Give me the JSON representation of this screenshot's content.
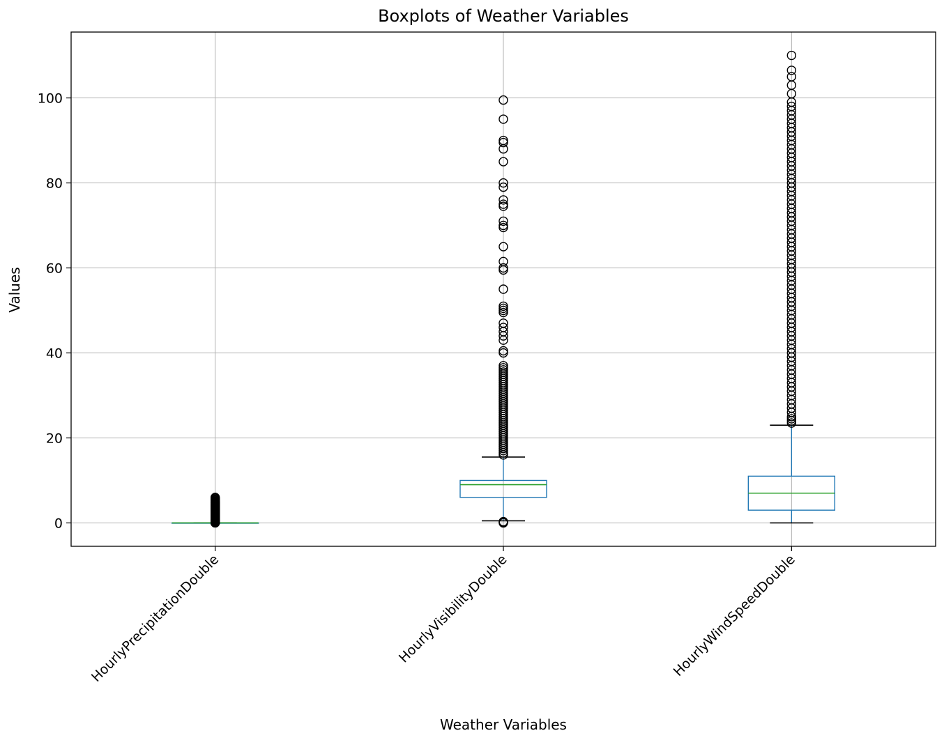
{
  "chart_data": {
    "type": "boxplot",
    "title": "Boxplots of Weather Variables",
    "xlabel": "Weather Variables",
    "ylabel": "Values",
    "ylim": [
      -5.5,
      115.5
    ],
    "yticks": [
      0,
      20,
      40,
      60,
      80,
      100
    ],
    "grid": true,
    "colors": {
      "box": "#1f77b4",
      "median": "#2ca02c",
      "whisker": "#1f77b4",
      "flier": "#000000",
      "grid": "#b0b0b0"
    },
    "categories": [
      "HourlyPrecipitationDouble",
      "HourlyVisibilityDouble",
      "HourlyWindSpeedDouble"
    ],
    "boxes": [
      {
        "name": "HourlyPrecipitationDouble",
        "whisker_low": 0,
        "q1": 0,
        "median": 0,
        "q3": 0,
        "whisker_high": 0,
        "fliers": [
          0.01,
          0.02,
          0.03,
          0.05,
          0.08,
          0.1,
          0.15,
          0.2,
          0.25,
          0.3,
          0.4,
          0.5,
          0.6,
          0.7,
          0.8,
          0.9,
          1.0,
          1.1,
          1.2,
          1.3,
          1.4,
          1.5,
          1.6,
          1.7,
          1.8,
          1.9,
          2.0,
          2.1,
          2.2,
          2.3,
          2.4,
          2.5,
          2.6,
          2.7,
          2.8,
          2.9,
          3.0,
          3.1,
          3.2,
          3.3,
          3.4,
          3.5,
          3.6,
          3.7,
          3.8,
          3.9,
          4.0,
          4.1,
          4.2,
          4.3,
          4.4,
          4.5,
          4.6,
          4.7,
          4.8,
          4.9,
          5.0,
          5.2,
          5.4,
          5.6,
          5.8,
          6.0
        ]
      },
      {
        "name": "HourlyVisibilityDouble",
        "whisker_low": 0.5,
        "q1": 6,
        "median": 9,
        "q3": 10,
        "whisker_high": 15.5,
        "fliers": [
          0,
          0.1,
          0.2,
          0.3,
          16,
          16.5,
          17,
          17.5,
          18,
          18.5,
          19,
          19.5,
          20,
          20.5,
          21,
          21.5,
          22,
          22.5,
          23,
          23.5,
          24,
          24.5,
          25,
          25.5,
          26,
          26.5,
          27,
          27.5,
          28,
          28.5,
          29,
          29.5,
          30,
          30.5,
          31,
          31.5,
          32,
          32.5,
          33,
          33.5,
          34,
          34.5,
          35,
          35.5,
          36,
          36.5,
          37,
          40,
          40.5,
          43,
          44,
          45,
          46,
          47,
          49.5,
          50,
          50.5,
          51,
          55,
          59.5,
          60,
          61.5,
          65,
          69.5,
          70,
          71,
          74.5,
          75,
          76,
          79,
          80,
          85,
          88,
          89.5,
          90,
          95,
          99.5
        ]
      },
      {
        "name": "HourlyWindSpeedDouble",
        "whisker_low": 0,
        "q1": 3,
        "median": 7,
        "q3": 11,
        "whisker_high": 23,
        "fliers": [
          23.5,
          24,
          24.5,
          25,
          26,
          27,
          28,
          29,
          30,
          31,
          32,
          33,
          34,
          35,
          36,
          37,
          38,
          39,
          40,
          41,
          42,
          43,
          44,
          45,
          46,
          47,
          48,
          49,
          50,
          51,
          52,
          53,
          54,
          55,
          56,
          57,
          58,
          59,
          60,
          61,
          62,
          63,
          64,
          65,
          66,
          67,
          68,
          69,
          70,
          71,
          72,
          73,
          74,
          75,
          76,
          77,
          78,
          79,
          80,
          81,
          82,
          83,
          84,
          85,
          86,
          87,
          88,
          89,
          90,
          91,
          92,
          93,
          94,
          95,
          96,
          97,
          98,
          99,
          101,
          103,
          105,
          106.5,
          110
        ]
      }
    ]
  }
}
